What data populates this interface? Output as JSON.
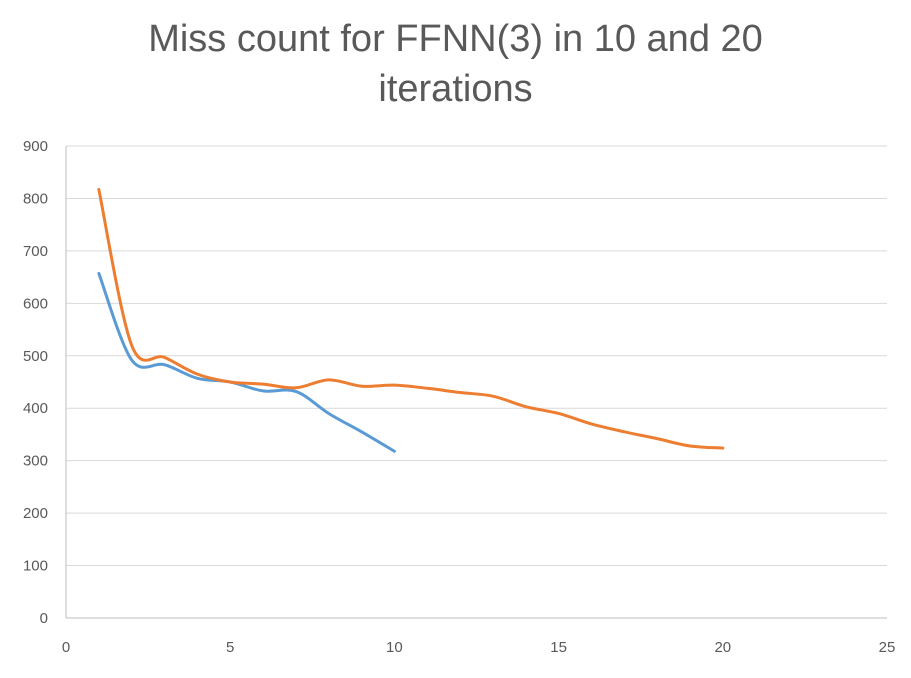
{
  "chart_data": {
    "type": "line",
    "title_line1": "Miss count for FFNN(3) in 10 and 20",
    "title_line2": "iterations",
    "xlim": [
      0,
      25
    ],
    "ylim": [
      0,
      900
    ],
    "xticks": [
      "0",
      "5",
      "10",
      "15",
      "20",
      "25"
    ],
    "yticks": [
      "0",
      "100",
      "200",
      "300",
      "400",
      "500",
      "600",
      "700",
      "800",
      "900"
    ],
    "grid": "horizontal",
    "legend": "none",
    "series": [
      {
        "color": "#5b9bd5",
        "x": [
          1,
          2,
          3,
          4,
          5,
          6,
          7,
          8,
          9,
          10
        ],
        "y": [
          657,
          492,
          483,
          457,
          450,
          433,
          432,
          390,
          355,
          318
        ]
      },
      {
        "color": "#ed7d31",
        "x": [
          1,
          2,
          3,
          4,
          5,
          6,
          7,
          8,
          9,
          10,
          11,
          12,
          13,
          14,
          15,
          16,
          17,
          18,
          19,
          20
        ],
        "y": [
          817,
          520,
          497,
          465,
          450,
          446,
          439,
          454,
          442,
          444,
          438,
          430,
          423,
          403,
          390,
          370,
          355,
          342,
          328,
          324
        ]
      }
    ]
  }
}
